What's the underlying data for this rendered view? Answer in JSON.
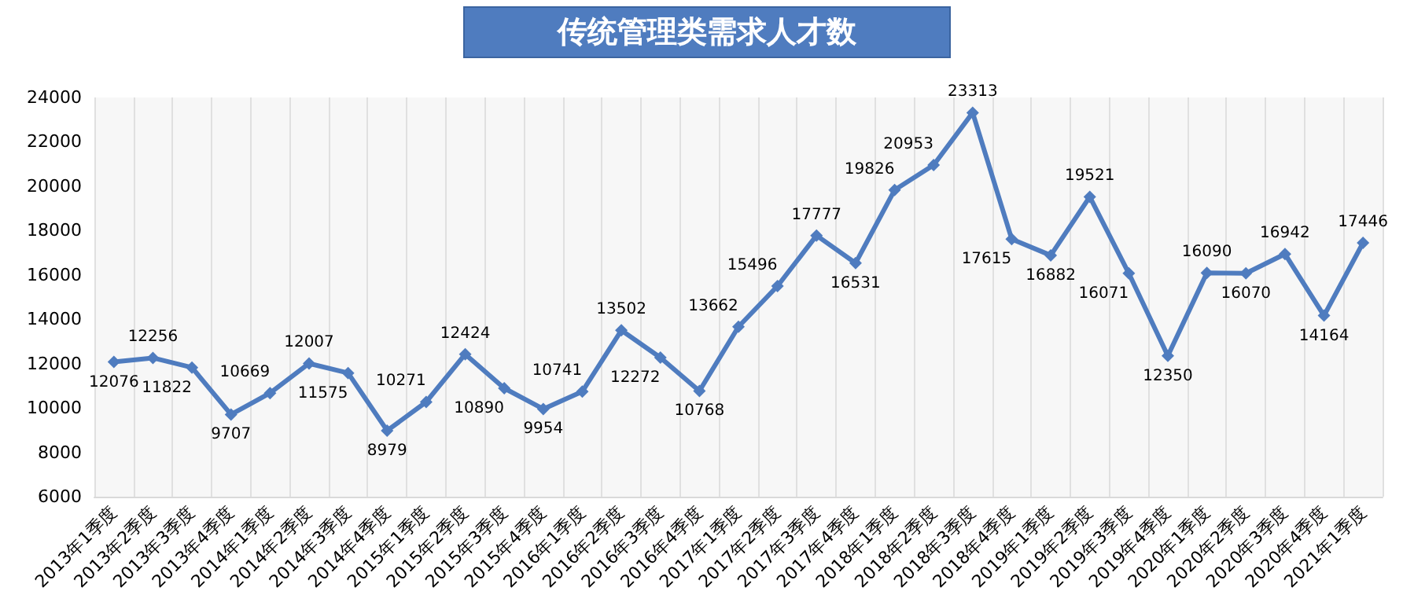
{
  "chart_data": {
    "type": "line",
    "title": "传统管理类需求人才数",
    "categories": [
      "2013年1季度",
      "2013年2季度",
      "2013年3季度",
      "2013年4季度",
      "2014年1季度",
      "2014年2季度",
      "2014年3季度",
      "2014年4季度",
      "2015年1季度",
      "2015年2季度",
      "2015年3季度",
      "2015年4季度",
      "2016年1季度",
      "2016年2季度",
      "2016年3季度",
      "2016年4季度",
      "2017年1季度",
      "2017年2季度",
      "2017年3季度",
      "2017年4季度",
      "2018年1季度",
      "2018年2季度",
      "2018年3季度",
      "2018年4季度",
      "2019年1季度",
      "2019年2季度",
      "2019年3季度",
      "2019年4季度",
      "2020年1季度",
      "2020年2季度",
      "2020年3季度",
      "2020年4季度",
      "2021年1季度"
    ],
    "series": [
      {
        "color": "#4f7cbf",
        "values": [
          12076,
          12256,
          11822,
          9707,
          10669,
          12007,
          11575,
          8979,
          10271,
          12424,
          10890,
          9954,
          10741,
          13502,
          12272,
          10768,
          13662,
          15496,
          17777,
          16531,
          19826,
          20953,
          23313,
          17615,
          16882,
          19521,
          16071,
          12350,
          16090,
          16070,
          16942,
          14164,
          17446
        ]
      }
    ],
    "ylim": [
      6000,
      24000
    ],
    "yticks": [
      6000,
      8000,
      10000,
      12000,
      14000,
      16000,
      18000,
      20000,
      22000,
      24000
    ],
    "grid": "x",
    "data_labels": true,
    "marker": "diamond",
    "line_style": "solid"
  }
}
